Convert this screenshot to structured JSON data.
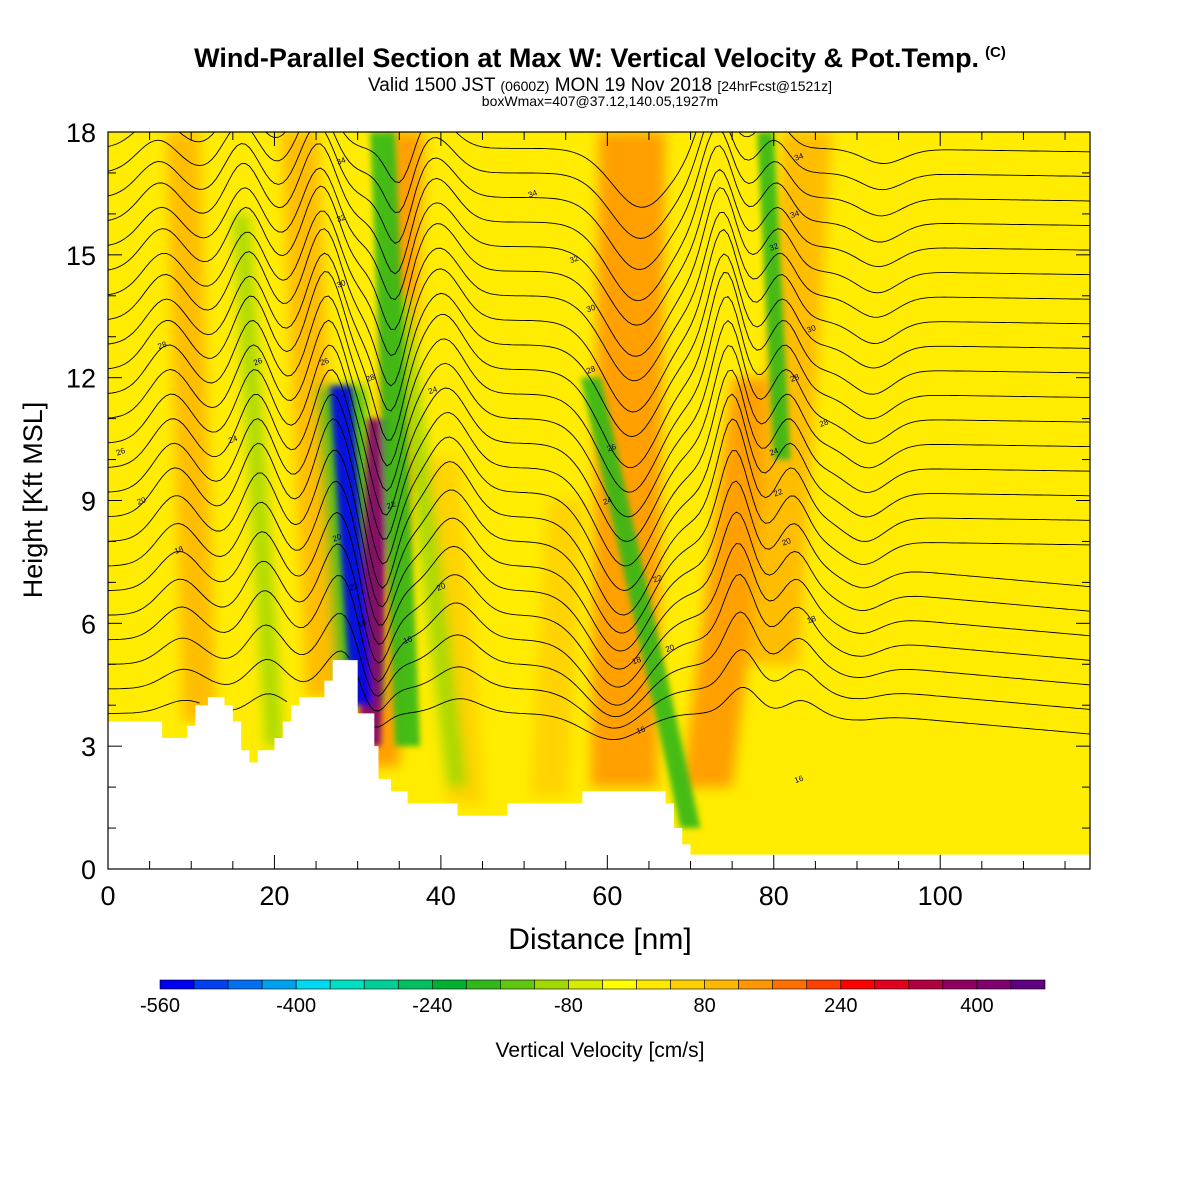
{
  "title": {
    "main": "Wind-Parallel Section at Max W: Vertical Velocity & Pot.Temp.",
    "copyright": "(C)",
    "valid_prefix": "Valid 1500 JST",
    "valid_utc": "(0600Z)",
    "valid_date": "MON 19 Nov 2018",
    "forecast": "[24hrFcst@1521z]",
    "boxwmax": "boxWmax=407@37.12,140.05,1927m"
  },
  "chart_data": {
    "type": "heatmap",
    "xlabel": "Distance [nm]",
    "ylabel": "Height [Kft MSL]",
    "xlim": [
      0,
      118
    ],
    "ylim": [
      0,
      18
    ],
    "x_ticks": [
      0,
      20,
      40,
      60,
      80,
      100
    ],
    "y_ticks": [
      0,
      3,
      6,
      9,
      12,
      15,
      18
    ],
    "colorbar": {
      "label": "Vertical Velocity [cm/s]",
      "tick_labels": [
        "-560",
        "-400",
        "-240",
        "-80",
        "80",
        "240",
        "400"
      ],
      "colors": [
        "#0000f0",
        "#0040f0",
        "#0070f0",
        "#00a0f0",
        "#00d8f0",
        "#00e0c0",
        "#00d098",
        "#00c060",
        "#00b030",
        "#30b818",
        "#60c810",
        "#a0d800",
        "#d8ec00",
        "#ffff00",
        "#ffe800",
        "#ffd000",
        "#ffb800",
        "#ff9800",
        "#ff7000",
        "#ff4000",
        "#ff0000",
        "#e00020",
        "#b00040",
        "#900060",
        "#800070",
        "#600080"
      ]
    },
    "terrain_height_kft": [
      {
        "x": 0,
        "h": 3.6
      },
      {
        "x": 6.5,
        "h": 3.6
      },
      {
        "x": 6.5,
        "h": 3.2
      },
      {
        "x": 9.5,
        "h": 3.2
      },
      {
        "x": 9.5,
        "h": 3.5
      },
      {
        "x": 10.5,
        "h": 3.5
      },
      {
        "x": 10.5,
        "h": 4.0
      },
      {
        "x": 12,
        "h": 4.0
      },
      {
        "x": 12,
        "h": 4.2
      },
      {
        "x": 14,
        "h": 4.2
      },
      {
        "x": 14,
        "h": 4.0
      },
      {
        "x": 15,
        "h": 4.0
      },
      {
        "x": 15,
        "h": 3.6
      },
      {
        "x": 16,
        "h": 3.6
      },
      {
        "x": 16,
        "h": 2.9
      },
      {
        "x": 17,
        "h": 2.9
      },
      {
        "x": 17,
        "h": 2.6
      },
      {
        "x": 18,
        "h": 2.6
      },
      {
        "x": 18,
        "h": 2.9
      },
      {
        "x": 20,
        "h": 2.9
      },
      {
        "x": 20,
        "h": 3.2
      },
      {
        "x": 21,
        "h": 3.2
      },
      {
        "x": 21,
        "h": 3.6
      },
      {
        "x": 22,
        "h": 3.6
      },
      {
        "x": 22,
        "h": 4.0
      },
      {
        "x": 23,
        "h": 4.0
      },
      {
        "x": 23,
        "h": 4.2
      },
      {
        "x": 26,
        "h": 4.2
      },
      {
        "x": 26,
        "h": 4.6
      },
      {
        "x": 27,
        "h": 4.6
      },
      {
        "x": 27,
        "h": 5.1
      },
      {
        "x": 30,
        "h": 5.1
      },
      {
        "x": 30,
        "h": 3.8
      },
      {
        "x": 32,
        "h": 3.8
      },
      {
        "x": 32,
        "h": 3.0
      },
      {
        "x": 32.5,
        "h": 3.0
      },
      {
        "x": 32.5,
        "h": 2.2
      },
      {
        "x": 34,
        "h": 2.2
      },
      {
        "x": 34,
        "h": 1.9
      },
      {
        "x": 36,
        "h": 1.9
      },
      {
        "x": 36,
        "h": 1.6
      },
      {
        "x": 42,
        "h": 1.6
      },
      {
        "x": 42,
        "h": 1.3
      },
      {
        "x": 48,
        "h": 1.3
      },
      {
        "x": 48,
        "h": 1.6
      },
      {
        "x": 57,
        "h": 1.6
      },
      {
        "x": 57,
        "h": 1.9
      },
      {
        "x": 67,
        "h": 1.9
      },
      {
        "x": 67,
        "h": 1.6
      },
      {
        "x": 68,
        "h": 1.6
      },
      {
        "x": 68,
        "h": 1.0
      },
      {
        "x": 69,
        "h": 1.0
      },
      {
        "x": 69,
        "h": 0.6
      },
      {
        "x": 70,
        "h": 0.6
      },
      {
        "x": 70,
        "h": 0.35
      },
      {
        "x": 118,
        "h": 0.35
      }
    ],
    "updraft_bands": [
      {
        "x0": 31.5,
        "x1": 32.5,
        "y0": 3.0,
        "y1": 11.0,
        "w": 1.3,
        "value": 400
      },
      {
        "x0": 33,
        "x1": 36,
        "y0": 2.5,
        "y1": 18,
        "w": 2.0,
        "value": 120
      },
      {
        "x0": 26,
        "x1": 23,
        "y0": 4.2,
        "y1": 18,
        "w": 2.2,
        "value": 90
      },
      {
        "x0": 11,
        "x1": 9,
        "y0": 3.6,
        "y1": 18,
        "w": 2.0,
        "value": 80
      },
      {
        "x0": 62,
        "x1": 63,
        "y0": 2.0,
        "y1": 18,
        "w": 4.0,
        "value": 120
      },
      {
        "x0": 72,
        "x1": 78,
        "y0": 2.0,
        "y1": 12,
        "w": 3.0,
        "value": 150
      },
      {
        "x0": 80,
        "x1": 84,
        "y0": 5.0,
        "y1": 18,
        "w": 3.0,
        "value": 80
      },
      {
        "x0": 43,
        "x1": 40,
        "y0": 1.6,
        "y1": 10,
        "w": 2.2,
        "value": 70
      },
      {
        "x0": 53,
        "x1": 55,
        "y0": 1.8,
        "y1": 9,
        "w": 2.2,
        "value": 60
      }
    ],
    "downdraft_bands": [
      {
        "x0": 30.5,
        "x1": 28.0,
        "y0": 4.0,
        "y1": 11.8,
        "w": 1.3,
        "value": -560
      },
      {
        "x0": 36,
        "x1": 33,
        "y0": 3.0,
        "y1": 18,
        "w": 1.5,
        "value": -200
      },
      {
        "x0": 20,
        "x1": 16,
        "y0": 3.0,
        "y1": 16,
        "w": 1.0,
        "value": -90
      },
      {
        "x0": 70,
        "x1": 58,
        "y0": 1.0,
        "y1": 12,
        "w": 1.2,
        "value": -200
      },
      {
        "x0": 81,
        "x1": 79,
        "y0": 10,
        "y1": 18,
        "w": 1.0,
        "value": -200
      },
      {
        "x0": 42,
        "x1": 35,
        "y0": 2.0,
        "y1": 14,
        "w": 1.2,
        "value": -90
      }
    ],
    "potential_temperature_contours": {
      "label_values_shown": [
        "34",
        "32",
        "30",
        "28",
        "26",
        "24",
        "22",
        "20",
        "18",
        "16"
      ],
      "levels": [
        {
          "base": 3.8,
          "amp": 0.4
        },
        {
          "base": 4.4,
          "amp": 0.6
        },
        {
          "base": 5.0,
          "amp": 0.8
        },
        {
          "base": 5.6,
          "amp": 1.0
        },
        {
          "base": 6.2,
          "amp": 1.1
        },
        {
          "base": 6.8,
          "amp": 1.2
        },
        {
          "base": 7.4,
          "amp": 1.3
        },
        {
          "base": 8.0,
          "amp": 1.4
        },
        {
          "base": 8.6,
          "amp": 1.5
        },
        {
          "base": 9.2,
          "amp": 1.5
        },
        {
          "base": 9.8,
          "amp": 1.5
        },
        {
          "base": 10.4,
          "amp": 1.5
        },
        {
          "base": 11.0,
          "amp": 1.5
        },
        {
          "base": 11.6,
          "amp": 1.5
        },
        {
          "base": 12.2,
          "amp": 1.5
        },
        {
          "base": 12.8,
          "amp": 1.4
        },
        {
          "base": 13.4,
          "amp": 1.4
        },
        {
          "base": 14.0,
          "amp": 1.3
        },
        {
          "base": 14.6,
          "amp": 1.3
        },
        {
          "base": 15.2,
          "amp": 1.2
        },
        {
          "base": 15.8,
          "amp": 1.2
        },
        {
          "base": 16.4,
          "amp": 1.1
        },
        {
          "base": 17.0,
          "amp": 1.0
        },
        {
          "base": 17.6,
          "amp": 0.9
        }
      ],
      "labels": [
        {
          "x": 28,
          "y": 17.3,
          "text": "34"
        },
        {
          "x": 28,
          "y": 15.9,
          "text": "32"
        },
        {
          "x": 28,
          "y": 14.3,
          "text": "30"
        },
        {
          "x": 6.5,
          "y": 12.8,
          "text": "28"
        },
        {
          "x": 18,
          "y": 12.4,
          "text": "26"
        },
        {
          "x": 26,
          "y": 12.4,
          "text": "26"
        },
        {
          "x": 31.5,
          "y": 12.0,
          "text": "28"
        },
        {
          "x": 15,
          "y": 10.5,
          "text": "24"
        },
        {
          "x": 1.5,
          "y": 10.2,
          "text": "26"
        },
        {
          "x": 4,
          "y": 9.0,
          "text": "20"
        },
        {
          "x": 8.5,
          "y": 7.8,
          "text": "18"
        },
        {
          "x": 27.5,
          "y": 8.1,
          "text": "20"
        },
        {
          "x": 34,
          "y": 8.9,
          "text": "22"
        },
        {
          "x": 29.5,
          "y": 6.9,
          "text": "22"
        },
        {
          "x": 30.5,
          "y": 6.0,
          "text": "18"
        },
        {
          "x": 36,
          "y": 5.6,
          "text": "16"
        },
        {
          "x": 40,
          "y": 6.9,
          "text": "20"
        },
        {
          "x": 39,
          "y": 11.7,
          "text": "24"
        },
        {
          "x": 51,
          "y": 16.5,
          "text": "34"
        },
        {
          "x": 56,
          "y": 14.9,
          "text": "32"
        },
        {
          "x": 58,
          "y": 13.7,
          "text": "30"
        },
        {
          "x": 58,
          "y": 12.2,
          "text": "28"
        },
        {
          "x": 60.5,
          "y": 10.3,
          "text": "26"
        },
        {
          "x": 60,
          "y": 9.0,
          "text": "24"
        },
        {
          "x": 66,
          "y": 7.1,
          "text": "22"
        },
        {
          "x": 67.5,
          "y": 5.4,
          "text": "20"
        },
        {
          "x": 63.5,
          "y": 5.1,
          "text": "18"
        },
        {
          "x": 64,
          "y": 3.4,
          "text": "16"
        },
        {
          "x": 83,
          "y": 17.4,
          "text": "34"
        },
        {
          "x": 82.5,
          "y": 16.0,
          "text": "34"
        },
        {
          "x": 80,
          "y": 15.2,
          "text": "32"
        },
        {
          "x": 84.5,
          "y": 13.2,
          "text": "30"
        },
        {
          "x": 82.5,
          "y": 12.0,
          "text": "28"
        },
        {
          "x": 86,
          "y": 10.9,
          "text": "28"
        },
        {
          "x": 80,
          "y": 10.2,
          "text": "24"
        },
        {
          "x": 80.5,
          "y": 9.2,
          "text": "22"
        },
        {
          "x": 81.5,
          "y": 8.0,
          "text": "20"
        },
        {
          "x": 84.5,
          "y": 6.1,
          "text": "18"
        },
        {
          "x": 83,
          "y": 2.2,
          "text": "16"
        }
      ]
    }
  }
}
